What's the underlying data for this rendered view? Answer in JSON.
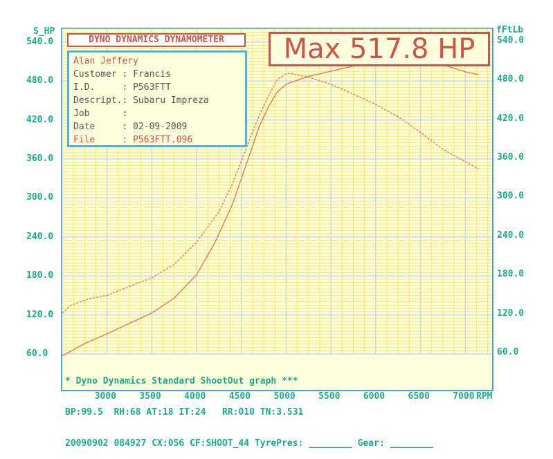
{
  "chart_data": {
    "type": "line",
    "left_axis_label": "S_HP",
    "right_axis_label": "fFtLb",
    "x_unit": "RPM",
    "xlim": [
      2500,
      7300
    ],
    "ylim": [
      60,
      560
    ],
    "x_ticks": [
      "3000",
      "3500",
      "4000",
      "4500",
      "5000",
      "5500",
      "6000",
      "6500",
      "7000"
    ],
    "y_ticks": [
      "540.0",
      "480.0",
      "420.0",
      "360.0",
      "300.0",
      "240.0",
      "180.0",
      "120.0",
      "60.0"
    ],
    "series": [
      {
        "name": "",
        "x": [
          2500,
          2750,
          3000,
          3250,
          3500,
          3750,
          4000,
          4200,
          4400,
          4500,
          4600,
          4700,
          4800,
          4900,
          5000,
          5100,
          5250,
          5500,
          5750,
          6000,
          6200,
          6300,
          6500,
          6750,
          7000,
          7150
        ],
        "y": [
          57,
          76,
          91,
          107,
          123,
          146,
          182,
          230,
          290,
          330,
          370,
          410,
          440,
          463,
          475,
          480,
          487,
          495,
          503,
          510,
          514,
          516,
          513,
          505,
          494,
          490
        ]
      },
      {
        "name": "",
        "x": [
          2500,
          2600,
          2800,
          3000,
          3250,
          3500,
          3750,
          4000,
          4250,
          4400,
          4500,
          4600,
          4700,
          4800,
          4900,
          5000,
          5050,
          5100,
          5250,
          5500,
          5750,
          6000,
          6250,
          6500,
          6750,
          7000,
          7150
        ],
        "y": [
          123,
          135,
          145,
          150,
          164,
          177,
          198,
          232,
          279,
          322,
          357,
          393,
          427,
          456,
          482,
          491,
          492,
          490,
          486,
          475,
          460,
          444,
          425,
          401,
          375,
          356,
          345
        ]
      }
    ]
  },
  "brand_title": "DYNO DYNAMICS DYNAMOMETER",
  "max_label": "Max 517.8 HP",
  "info": {
    "name": "Alan Jeffery",
    "rows": [
      {
        "label": "Customer :",
        "value": "Francis"
      },
      {
        "label": "I.D.     :",
        "value": "P563FTT"
      },
      {
        "label": "Descript.:",
        "value": "Subaru Impreza"
      },
      {
        "label": "Job      :",
        "value": ""
      },
      {
        "label": "Date     :",
        "value": "02-09-2009"
      }
    ],
    "file_label": "File     :",
    "file_value": "P563FTT.096"
  },
  "footer": {
    "line1": "* Dyno Dynamics Standard ShootOut graph ***",
    "line2": "BP:99.5  RH:68 AT:18 IT:24   RR:010 TN:3.531",
    "line3": "20090902 084927 CX:056 CF:SHOOT_44 TyrePres: ________ Gear: ________"
  },
  "colors": {
    "grid": "#f2e86a",
    "grid_heavy": "#c9d5e4",
    "curve": "#e07a52",
    "axis_text": "#1aab8a",
    "accent": "#c9544a"
  }
}
